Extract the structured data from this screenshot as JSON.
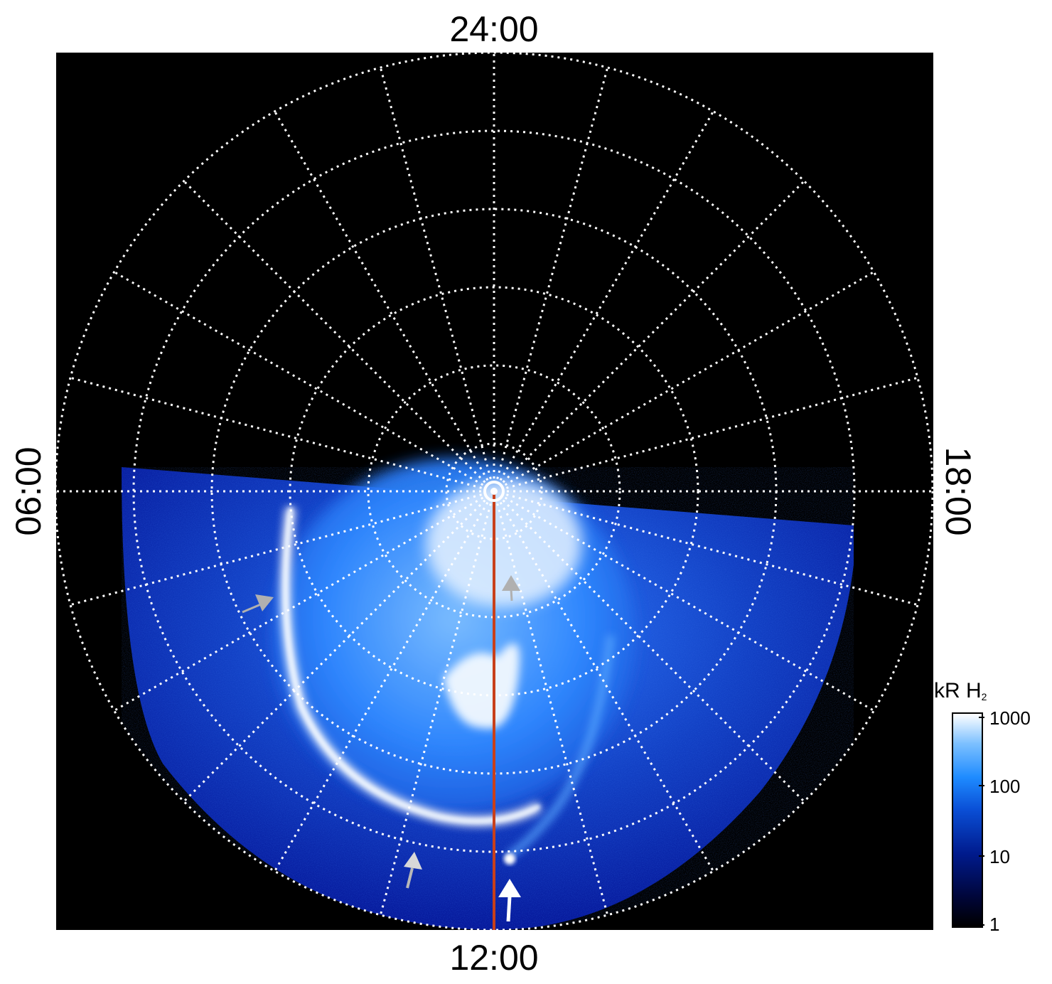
{
  "figure": {
    "labels": {
      "top": "24:00",
      "bottom": "12:00",
      "left": "06:00",
      "right": "18:00"
    },
    "colorbar": {
      "title_main": "kR H",
      "title_sub": "2",
      "ticks": [
        "1000",
        "100",
        "10",
        "1"
      ],
      "scale": "log",
      "range": [
        1,
        1000
      ],
      "colors": [
        "#000000",
        "#001a8c",
        "#1e8bff",
        "#ffffff"
      ]
    },
    "colors": {
      "background": "#000000",
      "grid": "#ffffff",
      "meridian_line": "#c8401a",
      "aurora_dim": "#0a2fb0",
      "aurora_mid": "#1e7fff",
      "aurora_bright": "#e8f4ff",
      "arrow_gray": "#b0b0b0",
      "arrow_white": "#ffffff"
    }
  }
}
